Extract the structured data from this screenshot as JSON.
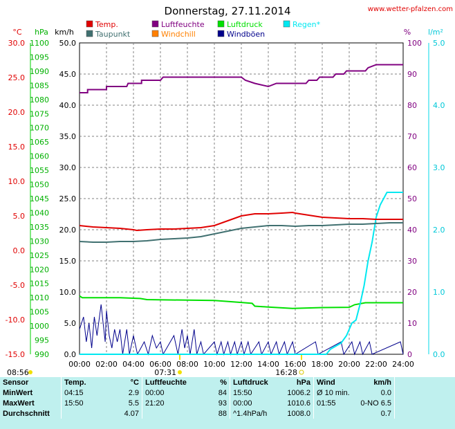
{
  "title": "Donnerstag, 27.11.2014",
  "website": "www.wetter-pfalzen.com",
  "units": {
    "temp": "°C",
    "pressure": "hPa",
    "wind": "km/h",
    "humidity": "%",
    "rain": "l/m²"
  },
  "legend": [
    {
      "label": "Temp.",
      "color": "#e00000"
    },
    {
      "label": "Luftfeuchte",
      "color": "#800080"
    },
    {
      "label": "Luftdruck",
      "color": "#00e000"
    },
    {
      "label": "Regen*",
      "color": "#00e8f0"
    },
    {
      "label": "Taupunkt",
      "color": "#407070"
    },
    {
      "label": "Windchill",
      "color": "#ff8000"
    },
    {
      "label": "Windböen",
      "color": "#00008b"
    }
  ],
  "axes": {
    "temp_ticks": [
      "30.0",
      "25.0",
      "20.0",
      "15.0",
      "10.0",
      "5.0",
      "0.0",
      "-5.0",
      "-10.0",
      "-15.0"
    ],
    "pressure_ticks": [
      "1100",
      "1095",
      "1090",
      "1085",
      "1080",
      "1075",
      "1070",
      "1065",
      "1060",
      "1055",
      "1050",
      "1045",
      "1040",
      "1035",
      "1030",
      "1025",
      "1020",
      "1015",
      "1010",
      "1005",
      "1000",
      "995",
      "990"
    ],
    "wind_ticks": [
      "50.0",
      "45.0",
      "40.0",
      "35.0",
      "30.0",
      "25.0",
      "20.0",
      "15.0",
      "10.0",
      "5.0",
      "0.0"
    ],
    "humidity_ticks": [
      "100",
      "90",
      "80",
      "70",
      "60",
      "50",
      "40",
      "30",
      "20",
      "10",
      "0"
    ],
    "rain_ticks": [
      "5.0",
      "4.0",
      "3.0",
      "2.0",
      "1.0",
      "0.0"
    ],
    "time_ticks": [
      "00:00",
      "02:00",
      "04:00",
      "06:00",
      "08:00",
      "10:00",
      "12:00",
      "14:00",
      "16:00",
      "18:00",
      "20:00",
      "22:00",
      "24:00"
    ]
  },
  "sun": {
    "events": [
      {
        "time": "08:56",
        "icon": "moon-icon"
      },
      {
        "time": "07:31",
        "icon": "sunrise-icon"
      },
      {
        "time": "16:28",
        "icon": "sunset-icon"
      }
    ]
  },
  "stats": {
    "headers": {
      "sensor": "Sensor",
      "temp": "Temp.",
      "temp_unit": "°C",
      "hum": "Luftfeuchte",
      "hum_unit": "%",
      "pres": "Luftdruck",
      "pres_unit": "hPa",
      "wind": "Wind",
      "wind_unit": "km/h"
    },
    "rows": [
      {
        "label": "MinWert",
        "t_time": "04:15",
        "t_val": "2.9",
        "h_time": "00:00",
        "h_val": "84",
        "p_time": "15:50",
        "p_val": "1006.2",
        "w_time": "Ø 10 min.",
        "w_val": "0.0"
      },
      {
        "label": "MaxWert",
        "t_time": "15:50",
        "t_val": "5.5",
        "h_time": "21:20",
        "h_val": "93",
        "p_time": "00:00",
        "p_val": "1010.6",
        "w_time": "01:55",
        "w_val": "0-NO 6.5"
      },
      {
        "label": "Durchschnitt",
        "t_time": "",
        "t_val": "4.07",
        "h_time": "",
        "h_val": "88",
        "p_time": "^1.4hPa/h",
        "p_val": "1008.0",
        "w_time": "",
        "w_val": "0.7"
      }
    ]
  },
  "chart_data": {
    "type": "line",
    "x_label_unit": "hours",
    "xlim": [
      0,
      24
    ],
    "series": [
      {
        "name": "Temp.",
        "axis": "temp",
        "color": "#e00000",
        "points": [
          [
            0,
            3.6
          ],
          [
            1,
            3.4
          ],
          [
            2,
            3.3
          ],
          [
            3,
            3.2
          ],
          [
            4,
            3.0
          ],
          [
            4.25,
            2.9
          ],
          [
            5,
            3.0
          ],
          [
            6,
            3.1
          ],
          [
            7,
            3.1
          ],
          [
            8,
            3.2
          ],
          [
            9,
            3.3
          ],
          [
            10,
            3.6
          ],
          [
            11,
            4.3
          ],
          [
            12,
            5.0
          ],
          [
            13,
            5.3
          ],
          [
            14,
            5.3
          ],
          [
            15,
            5.4
          ],
          [
            15.8,
            5.5
          ],
          [
            16,
            5.4
          ],
          [
            17,
            5.1
          ],
          [
            18,
            4.8
          ],
          [
            19,
            4.7
          ],
          [
            20,
            4.6
          ],
          [
            21,
            4.6
          ],
          [
            22,
            4.5
          ],
          [
            23,
            4.5
          ],
          [
            24,
            4.5
          ]
        ]
      },
      {
        "name": "Taupunkt",
        "axis": "temp",
        "color": "#407070",
        "points": [
          [
            0,
            1.3
          ],
          [
            1,
            1.2
          ],
          [
            2,
            1.2
          ],
          [
            3,
            1.3
          ],
          [
            4,
            1.3
          ],
          [
            5,
            1.4
          ],
          [
            6,
            1.6
          ],
          [
            7,
            1.7
          ],
          [
            8,
            1.8
          ],
          [
            9,
            2.0
          ],
          [
            10,
            2.4
          ],
          [
            11,
            2.8
          ],
          [
            12,
            3.2
          ],
          [
            13,
            3.4
          ],
          [
            14,
            3.6
          ],
          [
            15,
            3.6
          ],
          [
            16,
            3.5
          ],
          [
            17,
            3.6
          ],
          [
            18,
            3.6
          ],
          [
            19,
            3.7
          ],
          [
            20,
            3.8
          ],
          [
            21,
            3.8
          ],
          [
            22,
            3.9
          ],
          [
            23,
            4.0
          ],
          [
            24,
            4.0
          ]
        ]
      },
      {
        "name": "Luftfeuchte",
        "axis": "humidity",
        "color": "#800080",
        "points": [
          [
            0,
            84
          ],
          [
            0.6,
            84
          ],
          [
            0.6,
            85
          ],
          [
            2,
            85
          ],
          [
            2,
            86
          ],
          [
            3.5,
            86
          ],
          [
            3.6,
            87
          ],
          [
            4.6,
            87
          ],
          [
            4.6,
            88
          ],
          [
            6,
            88
          ],
          [
            6.2,
            89
          ],
          [
            12,
            89
          ],
          [
            12.3,
            88
          ],
          [
            13,
            87
          ],
          [
            14,
            86
          ],
          [
            14.6,
            87
          ],
          [
            16,
            87
          ],
          [
            16.8,
            87
          ],
          [
            17,
            88
          ],
          [
            17.6,
            88
          ],
          [
            17.8,
            89
          ],
          [
            18.8,
            89
          ],
          [
            19,
            90
          ],
          [
            19.6,
            90
          ],
          [
            19.8,
            91
          ],
          [
            21.2,
            91
          ],
          [
            21.4,
            92
          ],
          [
            22,
            93
          ],
          [
            24,
            93
          ]
        ]
      },
      {
        "name": "Luftdruck",
        "axis": "pressure",
        "color": "#00e000",
        "points": [
          [
            0,
            1010.6
          ],
          [
            0.2,
            1010.0
          ],
          [
            3,
            1010.0
          ],
          [
            4.5,
            1009.7
          ],
          [
            5,
            1009.3
          ],
          [
            10,
            1009.0
          ],
          [
            12,
            1008.3
          ],
          [
            12.8,
            1008.0
          ],
          [
            13,
            1007.0
          ],
          [
            14,
            1006.7
          ],
          [
            15.8,
            1006.2
          ],
          [
            18,
            1006.5
          ],
          [
            20,
            1006.6
          ],
          [
            20.4,
            1007.5
          ],
          [
            21.2,
            1008.2
          ],
          [
            24,
            1008.2
          ]
        ]
      },
      {
        "name": "Regen*",
        "axis": "rain",
        "color": "#00e8f0",
        "points": [
          [
            0,
            0
          ],
          [
            18.3,
            0
          ],
          [
            18.6,
            0.08
          ],
          [
            19.4,
            0.18
          ],
          [
            19.8,
            0.3
          ],
          [
            20.2,
            0.5
          ],
          [
            20.5,
            0.55
          ],
          [
            20.8,
            0.8
          ],
          [
            21.1,
            1.1
          ],
          [
            21.4,
            1.5
          ],
          [
            21.7,
            1.8
          ],
          [
            22,
            2.2
          ],
          [
            22.3,
            2.4
          ],
          [
            22.8,
            2.6
          ],
          [
            24,
            2.6
          ]
        ]
      },
      {
        "name": "Windböen",
        "axis": "wind",
        "color": "#00008b",
        "points": [
          [
            0,
            4
          ],
          [
            0.3,
            6
          ],
          [
            0.5,
            2
          ],
          [
            0.7,
            5
          ],
          [
            0.9,
            1
          ],
          [
            1.1,
            6
          ],
          [
            1.3,
            3
          ],
          [
            1.6,
            8
          ],
          [
            1.9,
            2
          ],
          [
            2,
            7
          ],
          [
            2.2,
            3
          ],
          [
            2.4,
            1
          ],
          [
            2.6,
            4
          ],
          [
            2.8,
            2
          ],
          [
            3,
            4
          ],
          [
            3.2,
            0
          ],
          [
            3.5,
            4
          ],
          [
            3.7,
            0
          ],
          [
            4,
            3
          ],
          [
            4.3,
            0
          ],
          [
            4.8,
            2
          ],
          [
            5.1,
            0
          ],
          [
            5.4,
            3
          ],
          [
            5.7,
            1
          ],
          [
            6,
            2
          ],
          [
            6.2,
            0
          ],
          [
            7,
            3
          ],
          [
            7.3,
            0
          ],
          [
            7.6,
            4
          ],
          [
            7.8,
            1
          ],
          [
            8,
            3
          ],
          [
            8.2,
            0
          ],
          [
            8.5,
            4
          ],
          [
            8.7,
            0
          ],
          [
            9,
            2
          ],
          [
            9.2,
            0
          ],
          [
            10,
            2
          ],
          [
            10.2,
            0
          ],
          [
            10.5,
            2
          ],
          [
            10.7,
            0
          ],
          [
            11,
            2
          ],
          [
            11.2,
            0
          ],
          [
            11.5,
            2
          ],
          [
            11.7,
            0
          ],
          [
            12,
            2
          ],
          [
            12.2,
            0
          ],
          [
            12.5,
            2
          ],
          [
            12.7,
            0
          ],
          [
            13.3,
            2
          ],
          [
            13.5,
            0
          ],
          [
            14,
            2
          ],
          [
            14.2,
            0
          ],
          [
            14.6,
            2
          ],
          [
            14.8,
            0
          ],
          [
            15.2,
            2
          ],
          [
            15.4,
            0
          ],
          [
            15.8,
            2
          ],
          [
            16,
            0
          ],
          [
            17.5,
            2
          ],
          [
            17.7,
            0
          ],
          [
            19.4,
            2
          ],
          [
            19.6,
            0
          ],
          [
            20.2,
            2
          ],
          [
            20.4,
            0
          ],
          [
            20.8,
            2
          ],
          [
            21,
            0
          ],
          [
            21.5,
            2
          ],
          [
            21.7,
            0
          ],
          [
            23.8,
            2
          ],
          [
            24,
            0
          ]
        ]
      }
    ],
    "ranges": {
      "temp": [
        -15,
        30
      ],
      "pressure": [
        990,
        1100
      ],
      "wind": [
        0,
        50
      ],
      "humidity": [
        0,
        100
      ],
      "rain": [
        0,
        5
      ]
    },
    "grid": true
  }
}
